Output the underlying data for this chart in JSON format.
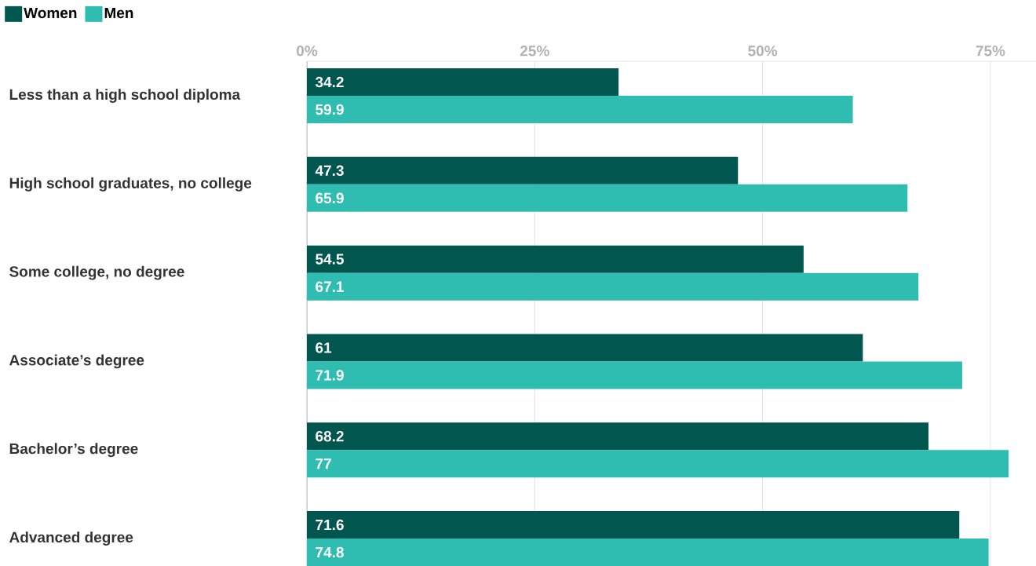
{
  "chart_data": {
    "type": "bar",
    "orientation": "horizontal",
    "categories": [
      "Less than a high school diploma",
      "High school graduates, no college",
      "Some college, no degree",
      "Associate’s degree",
      "Bachelor’s degree",
      "Advanced degree"
    ],
    "series": [
      {
        "name": "Women",
        "color": "#01574f",
        "values": [
          34.2,
          47.3,
          54.5,
          61,
          68.2,
          71.6
        ]
      },
      {
        "name": "Men",
        "color": "#2fbdb2",
        "values": [
          59.9,
          65.9,
          67.1,
          71.9,
          77,
          74.8
        ]
      }
    ],
    "xlim": [
      0,
      80
    ],
    "xticks": [
      {
        "value": 0,
        "label": "0%"
      },
      {
        "value": 25,
        "label": "25%"
      },
      {
        "value": 50,
        "label": "50%"
      },
      {
        "value": 75,
        "label": "75%"
      }
    ],
    "grid": "x",
    "legend": "top left",
    "data_labels": true
  }
}
